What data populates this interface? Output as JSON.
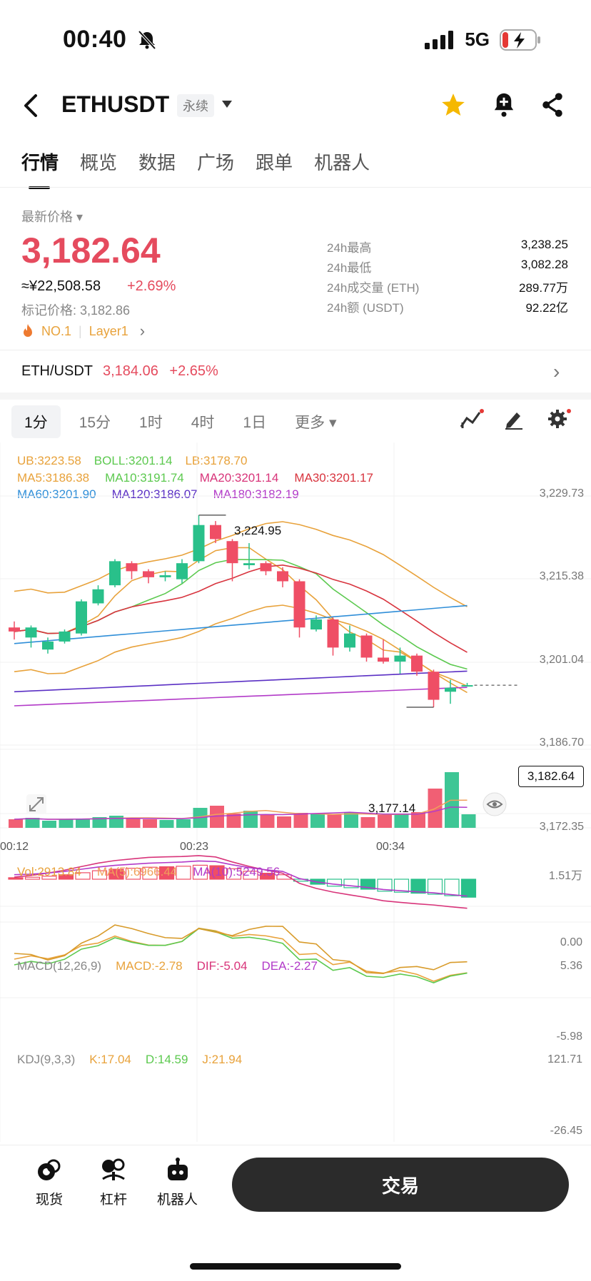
{
  "status": {
    "time": "00:40",
    "network": "5G"
  },
  "header": {
    "symbol": "ETHUSDT",
    "contract": "永续"
  },
  "tabs": [
    "行情",
    "概览",
    "数据",
    "广场",
    "跟单",
    "机器人"
  ],
  "price": {
    "label": "最新价格",
    "last": "3,182.64",
    "cny": "≈¥22,508.58",
    "change": "+2.69%",
    "mark": "标记价格: 3,182.86",
    "tag1": "NO.1",
    "tag2": "Layer1"
  },
  "stats": [
    {
      "k": "24h最高",
      "v": "3,238.25"
    },
    {
      "k": "24h最低",
      "v": "3,082.28"
    },
    {
      "k": "24h成交量 (ETH)",
      "v": "289.77万"
    },
    {
      "k": "24h额 (USDT)",
      "v": "92.22亿"
    }
  ],
  "spot": {
    "pair": "ETH/USDT",
    "price": "3,184.06",
    "change": "+2.65%"
  },
  "timeframes": [
    "1分",
    "15分",
    "1时",
    "4时",
    "1日",
    "更多"
  ],
  "indicators": {
    "boll": [
      {
        "text": "UB:3223.58",
        "color": "#e8a23b"
      },
      {
        "text": "BOLL:3201.14",
        "color": "#5cc94f"
      },
      {
        "text": "LB:3178.70",
        "color": "#e8a23b"
      }
    ],
    "ma1": [
      {
        "text": "MA5:3186.38",
        "color": "#e8a23b"
      },
      {
        "text": "MA10:3191.74",
        "color": "#5cc94f"
      },
      {
        "text": "MA20:3201.14",
        "color": "#d8347a"
      },
      {
        "text": "MA30:3201.17",
        "color": "#d8343e"
      }
    ],
    "ma2": [
      {
        "text": "MA60:3201.90",
        "color": "#2f8ed8"
      },
      {
        "text": "MA120:3186.07",
        "color": "#5a2fc4"
      },
      {
        "text": "MA180:3182.19",
        "color": "#b23ac8"
      }
    ],
    "vol": [
      {
        "text": "Vol:2913.84",
        "color": "#e8a23b"
      },
      {
        "text": "MA(5):6966.44",
        "color": "#f0a05a"
      },
      {
        "text": "MA(10):5249.56",
        "color": "#b23ac8"
      }
    ],
    "macd": [
      {
        "text": "MACD(12,26,9)",
        "color": "#888888"
      },
      {
        "text": "MACD:-2.78",
        "color": "#e8a23b"
      },
      {
        "text": "DIF:-5.04",
        "color": "#d8347a"
      },
      {
        "text": "DEA:-2.27",
        "color": "#b23ac8"
      }
    ],
    "kdj": [
      {
        "text": "KDJ(9,3,3)",
        "color": "#888888"
      },
      {
        "text": "K:17.04",
        "color": "#e8a23b"
      },
      {
        "text": "D:14.59",
        "color": "#5cc94f"
      },
      {
        "text": "J:21.94",
        "color": "#e8a23b"
      }
    ]
  },
  "chart_data": {
    "type": "candlestick",
    "price_axis": [
      "3,229.73",
      "3,215.38",
      "3,201.04",
      "3,186.70",
      "3,172.35"
    ],
    "ylim": [
      3172.35,
      3229.73
    ],
    "time_labels": [
      "00:12",
      "00:23",
      "00:34"
    ],
    "high_label": "3,224.95",
    "low_label": "3,177.14",
    "current": "3,182.64",
    "vol_axis": [
      "1.51万",
      "0.00"
    ],
    "macd_axis": [
      "5.36",
      "-5.98"
    ],
    "kdj_axis": [
      "121.71",
      "-26.45"
    ],
    "candles": [
      {
        "o": 3197.0,
        "h": 3198.5,
        "l": 3194.0,
        "c": 3196.0
      },
      {
        "o": 3194.5,
        "h": 3197.5,
        "l": 3192.0,
        "c": 3197.0
      },
      {
        "o": 3191.5,
        "h": 3194.5,
        "l": 3190.5,
        "c": 3193.5
      },
      {
        "o": 3193.5,
        "h": 3196.5,
        "l": 3193.0,
        "c": 3196.0
      },
      {
        "o": 3195.5,
        "h": 3204.0,
        "l": 3195.0,
        "c": 3203.5
      },
      {
        "o": 3203.0,
        "h": 3207.5,
        "l": 3202.5,
        "c": 3206.5
      },
      {
        "o": 3207.5,
        "h": 3214.0,
        "l": 3207.0,
        "c": 3213.5
      },
      {
        "o": 3213.0,
        "h": 3213.5,
        "l": 3209.0,
        "c": 3211.0
      },
      {
        "o": 3211.0,
        "h": 3211.5,
        "l": 3208.0,
        "c": 3209.5
      },
      {
        "o": 3209.5,
        "h": 3211.0,
        "l": 3208.5,
        "c": 3210.0
      },
      {
        "o": 3209.0,
        "h": 3214.0,
        "l": 3208.0,
        "c": 3213.0
      },
      {
        "o": 3213.5,
        "h": 3224.95,
        "l": 3213.0,
        "c": 3222.5
      },
      {
        "o": 3222.5,
        "h": 3223.5,
        "l": 3218.0,
        "c": 3219.0
      },
      {
        "o": 3218.5,
        "h": 3219.0,
        "l": 3208.5,
        "c": 3213.0
      },
      {
        "o": 3212.5,
        "h": 3218.0,
        "l": 3211.5,
        "c": 3213.0
      },
      {
        "o": 3213.0,
        "h": 3213.5,
        "l": 3210.0,
        "c": 3211.0
      },
      {
        "o": 3211.0,
        "h": 3212.0,
        "l": 3207.0,
        "c": 3208.5
      },
      {
        "o": 3208.5,
        "h": 3209.0,
        "l": 3194.5,
        "c": 3197.0
      },
      {
        "o": 3196.5,
        "h": 3200.0,
        "l": 3196.0,
        "c": 3199.0
      },
      {
        "o": 3199.0,
        "h": 3199.5,
        "l": 3190.0,
        "c": 3192.0
      },
      {
        "o": 3192.0,
        "h": 3197.5,
        "l": 3191.0,
        "c": 3195.5
      },
      {
        "o": 3195.0,
        "h": 3195.5,
        "l": 3188.5,
        "c": 3189.5
      },
      {
        "o": 3189.5,
        "h": 3194.0,
        "l": 3188.0,
        "c": 3188.5
      },
      {
        "o": 3188.5,
        "h": 3192.0,
        "l": 3185.5,
        "c": 3190.0
      },
      {
        "o": 3190.0,
        "h": 3190.5,
        "l": 3185.0,
        "c": 3186.0
      },
      {
        "o": 3186.0,
        "h": 3186.5,
        "l": 3177.14,
        "c": 3179.0
      },
      {
        "o": 3181.0,
        "h": 3184.0,
        "l": 3178.0,
        "c": 3182.0
      },
      {
        "o": 3182.64,
        "h": 3183.2,
        "l": 3182.3,
        "c": 3182.64
      }
    ],
    "volumes": [
      0.12,
      0.14,
      0.1,
      0.12,
      0.13,
      0.15,
      0.17,
      0.13,
      0.12,
      0.11,
      0.12,
      0.28,
      0.31,
      0.2,
      0.24,
      0.18,
      0.16,
      0.21,
      0.2,
      0.19,
      0.22,
      0.15,
      0.18,
      0.2,
      0.22,
      0.55,
      0.78,
      0.19
    ],
    "macd_hist": [
      0.3,
      0.4,
      0.6,
      0.9,
      1.3,
      1.7,
      2.0,
      2.2,
      2.4,
      2.5,
      2.6,
      2.8,
      2.7,
      2.1,
      1.6,
      1.2,
      0.9,
      -0.4,
      -1.0,
      -1.4,
      -1.7,
      -2.0,
      -2.4,
      -2.6,
      -2.8,
      -3.0,
      -3.3,
      -3.6
    ]
  },
  "bottom": {
    "spot": "现货",
    "margin": "杠杆",
    "bot": "机器人",
    "trade": "交易"
  }
}
